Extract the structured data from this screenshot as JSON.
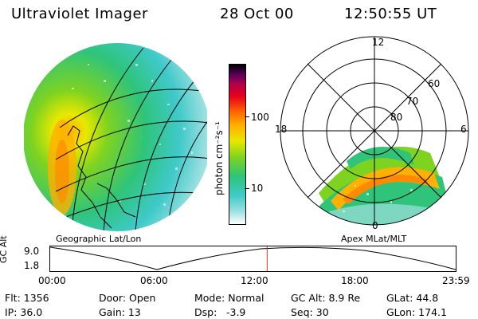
{
  "header": {
    "title": "Ultraviolet Imager",
    "date": "28 Oct 00",
    "time": "12:50:55 UT"
  },
  "colorbar": {
    "label": "photon cm⁻²s⁻¹",
    "tick_100": "100",
    "tick_10": "10"
  },
  "polar_plot": {
    "label_top": "12",
    "label_bottom": "0",
    "label_left": "18",
    "label_right": "6",
    "ring_60": "60",
    "ring_70": "70",
    "ring_80": "80"
  },
  "captions": {
    "left": "Geographic Lat/Lon",
    "right": "Apex MLat/MLT"
  },
  "orbit_plot": {
    "ylabel": "GC Alt",
    "ymax": "9.0",
    "ymin": "1.8",
    "x_ticks": [
      "00:00",
      "06:00",
      "12:00",
      "18:00",
      "23:59"
    ],
    "marker_time_fraction": 0.535
  },
  "footer": {
    "flt": "Flt: 1356",
    "ip": "IP: 36.0",
    "door": "Door: Open",
    "gain": "Gain: 13",
    "mode": "Mode: Normal",
    "dsp": "Dsp:",
    "dsp_val": "-3.9",
    "gcalt": "GC Alt: 8.9 Re",
    "seq": "Seq: 30",
    "glat": "GLat:  44.8",
    "glon": "GLon: 174.1"
  },
  "colors": {
    "marker": "#c0392b",
    "colorbar_stops": [
      "#ffffff",
      "#9fe0e0",
      "#3fc9c9",
      "#2fc47a",
      "#7ed321",
      "#e8e800",
      "#ffb000",
      "#ff6a00",
      "#e8001c",
      "#b0004a",
      "#55005a",
      "#000000"
    ]
  }
}
